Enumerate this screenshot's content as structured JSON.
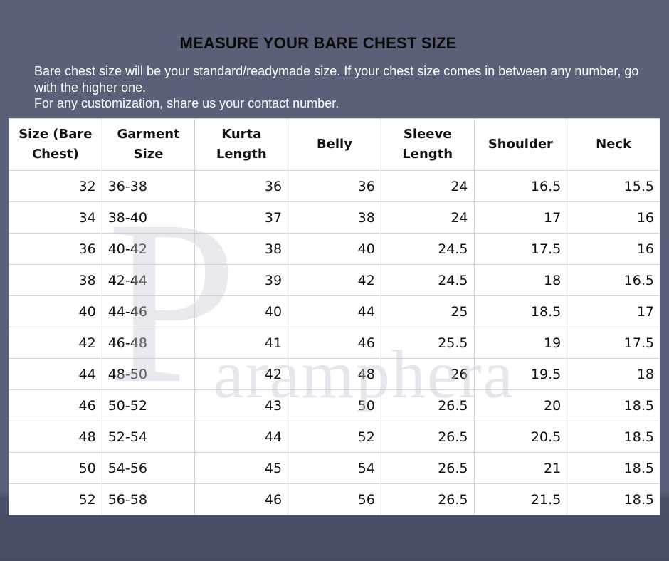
{
  "title": "MEASURE YOUR BARE CHEST SIZE",
  "intro": [
    "Bare chest size will be your standard/readymade size. If your chest size comes in between any number, go with the higher one.",
    "For any customization, share us your contact number."
  ],
  "watermark": "Paramphera",
  "table": {
    "headers": [
      "Size (Bare Chest)",
      "Garment Size",
      "Kurta Length",
      "Belly",
      "Sleeve Length",
      "Shoulder",
      "Neck"
    ],
    "rows": [
      [
        "32",
        "36-38",
        "36",
        "36",
        "24",
        "16.5",
        "15.5"
      ],
      [
        "34",
        "38-40",
        "37",
        "38",
        "24",
        "17",
        "16"
      ],
      [
        "36",
        "40-42",
        "38",
        "40",
        "24.5",
        "17.5",
        "16"
      ],
      [
        "38",
        "42-44",
        "39",
        "42",
        "24.5",
        "18",
        "16.5"
      ],
      [
        "40",
        "44-46",
        "40",
        "44",
        "25",
        "18.5",
        "17"
      ],
      [
        "42",
        "46-48",
        "41",
        "46",
        "25.5",
        "19",
        "17.5"
      ],
      [
        "44",
        "48-50",
        "42",
        "48",
        "26",
        "19.5",
        "18"
      ],
      [
        "46",
        "50-52",
        "43",
        "50",
        "26.5",
        "20",
        "18.5"
      ],
      [
        "48",
        "52-54",
        "44",
        "52",
        "26.5",
        "20.5",
        "18.5"
      ],
      [
        "50",
        "54-56",
        "45",
        "54",
        "26.5",
        "21",
        "18.5"
      ],
      [
        "52",
        "56-58",
        "46",
        "56",
        "26.5",
        "21.5",
        "18.5"
      ]
    ]
  }
}
